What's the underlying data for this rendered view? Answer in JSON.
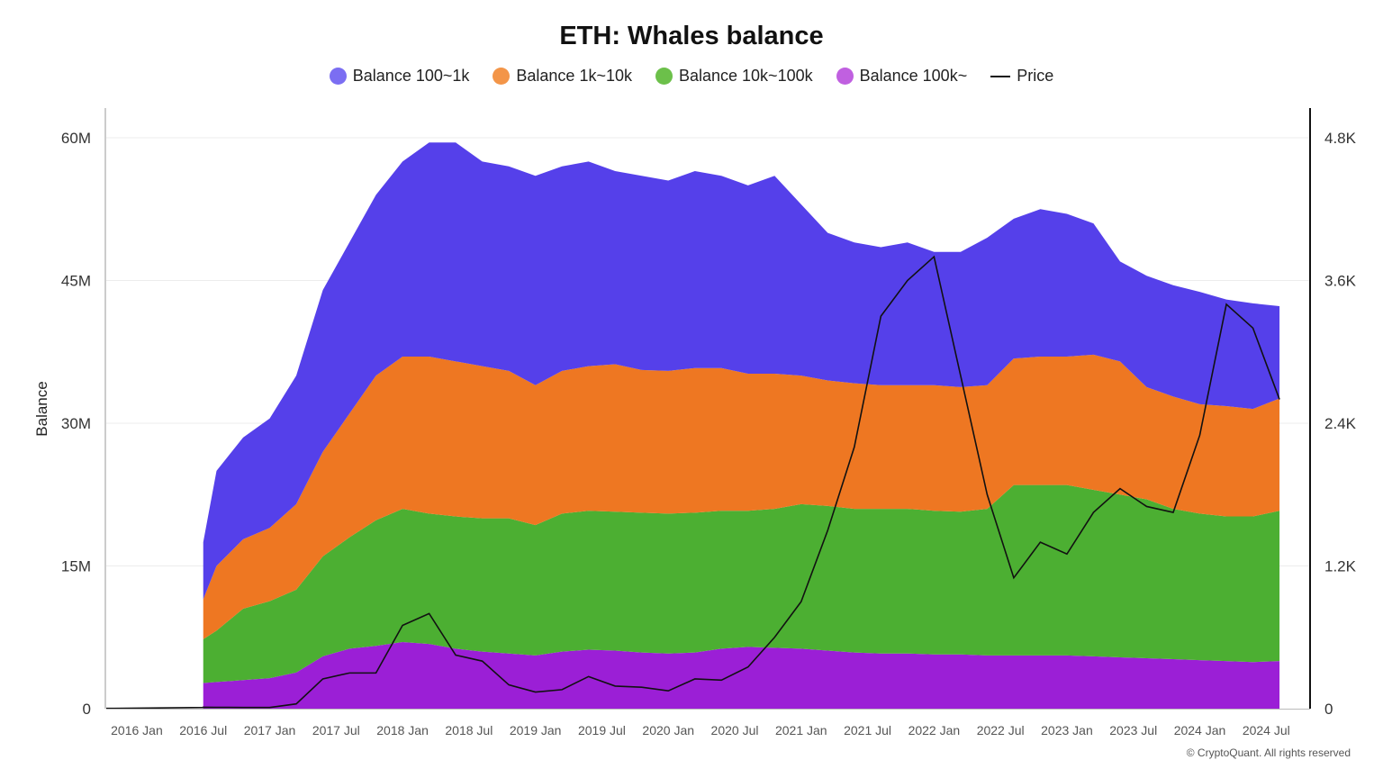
{
  "chart_data": {
    "type": "area",
    "title": "ETH: Whales balance",
    "ylabel": "Balance",
    "ylim": [
      0,
      60000000
    ],
    "y2lim": [
      0,
      4800
    ],
    "yticks": [
      "0",
      "15M",
      "30M",
      "45M",
      "60M"
    ],
    "y2ticks": [
      "0",
      "1.2K",
      "2.4K",
      "3.6K",
      "4.8K"
    ],
    "xticks": [
      "2016 Jan",
      "2016 Jul",
      "2017 Jan",
      "2017 Jul",
      "2018 Jan",
      "2018 Jul",
      "2019 Jan",
      "2019 Jul",
      "2020 Jan",
      "2020 Jul",
      "2021 Jan",
      "2021 Jul",
      "2022 Jan",
      "2022 Jul",
      "2023 Jan",
      "2023 Jul",
      "2024 Jan",
      "2024 Jul"
    ],
    "grid": true,
    "legend_position": "top-center",
    "x": [
      2016.5,
      2016.6,
      2016.8,
      2017.0,
      2017.2,
      2017.4,
      2017.6,
      2017.8,
      2018.0,
      2018.2,
      2018.4,
      2018.6,
      2018.8,
      2019.0,
      2019.2,
      2019.4,
      2019.6,
      2019.8,
      2020.0,
      2020.2,
      2020.4,
      2020.6,
      2020.8,
      2021.0,
      2021.2,
      2021.4,
      2021.6,
      2021.8,
      2022.0,
      2022.2,
      2022.4,
      2022.6,
      2022.8,
      2023.0,
      2023.2,
      2023.4,
      2023.6,
      2023.8,
      2024.0,
      2024.2,
      2024.4,
      2024.6
    ],
    "series": [
      {
        "name": "Balance 100k~",
        "color": "#9b1fd6",
        "values": [
          2700000,
          2800000,
          3000000,
          3200000,
          3800000,
          5500000,
          6300000,
          6600000,
          7000000,
          6800000,
          6300000,
          6000000,
          5800000,
          5600000,
          6000000,
          6200000,
          6100000,
          5900000,
          5800000,
          5900000,
          6300000,
          6500000,
          6400000,
          6300000,
          6100000,
          5900000,
          5800000,
          5800000,
          5700000,
          5700000,
          5600000,
          5600000,
          5600000,
          5600000,
          5500000,
          5400000,
          5300000,
          5200000,
          5100000,
          5000000,
          4900000,
          5000000
        ]
      },
      {
        "name": "Balance 10k~100k",
        "color": "#4caf32",
        "values": [
          7300000,
          8200000,
          10500000,
          11300000,
          12500000,
          16000000,
          18000000,
          19800000,
          21000000,
          20500000,
          20200000,
          20000000,
          20000000,
          19300000,
          20500000,
          20800000,
          20700000,
          20600000,
          20500000,
          20600000,
          20800000,
          20800000,
          21000000,
          21500000,
          21300000,
          21000000,
          21000000,
          21000000,
          20800000,
          20700000,
          21000000,
          23500000,
          23500000,
          23500000,
          23000000,
          22500000,
          22000000,
          21000000,
          20500000,
          20200000,
          20200000,
          20800000
        ]
      },
      {
        "name": "Balance 1k~10k",
        "color": "#ee7722",
        "values": [
          11500000,
          15000000,
          17800000,
          19000000,
          21500000,
          27000000,
          31000000,
          35000000,
          37000000,
          37000000,
          36500000,
          36000000,
          35500000,
          34000000,
          35500000,
          36000000,
          36200000,
          35600000,
          35500000,
          35800000,
          35800000,
          35200000,
          35200000,
          35000000,
          34500000,
          34200000,
          34000000,
          34000000,
          34000000,
          33800000,
          34000000,
          36800000,
          37000000,
          37000000,
          37200000,
          36500000,
          33800000,
          32800000,
          32000000,
          31800000,
          31500000,
          32600000
        ]
      },
      {
        "name": "Balance 100~1k",
        "color": "#5540ea",
        "values": [
          17500000,
          25000000,
          28500000,
          30500000,
          35000000,
          44000000,
          49000000,
          54000000,
          57500000,
          59500000,
          59500000,
          57500000,
          57000000,
          56000000,
          57000000,
          57500000,
          56500000,
          56000000,
          55500000,
          56500000,
          56000000,
          55000000,
          56000000,
          53000000,
          50000000,
          49000000,
          48500000,
          49000000,
          48000000,
          48000000,
          49500000,
          51500000,
          52500000,
          52000000,
          51000000,
          47000000,
          45500000,
          44500000,
          43800000,
          43000000,
          42600000,
          42300000
        ]
      },
      {
        "name": "Price",
        "color": "#111111",
        "axis": "right",
        "values": [
          12,
          11,
          10,
          10,
          40,
          250,
          300,
          300,
          700,
          800,
          450,
          400,
          200,
          140,
          160,
          270,
          190,
          180,
          150,
          250,
          240,
          350,
          600,
          900,
          1500,
          2200,
          3300,
          3600,
          3800,
          2800,
          1800,
          1100,
          1400,
          1300,
          1650,
          1850,
          1700,
          1650,
          2300,
          3400,
          3200,
          2600
        ]
      }
    ]
  },
  "footer": "© CryptoQuant. All rights reserved"
}
